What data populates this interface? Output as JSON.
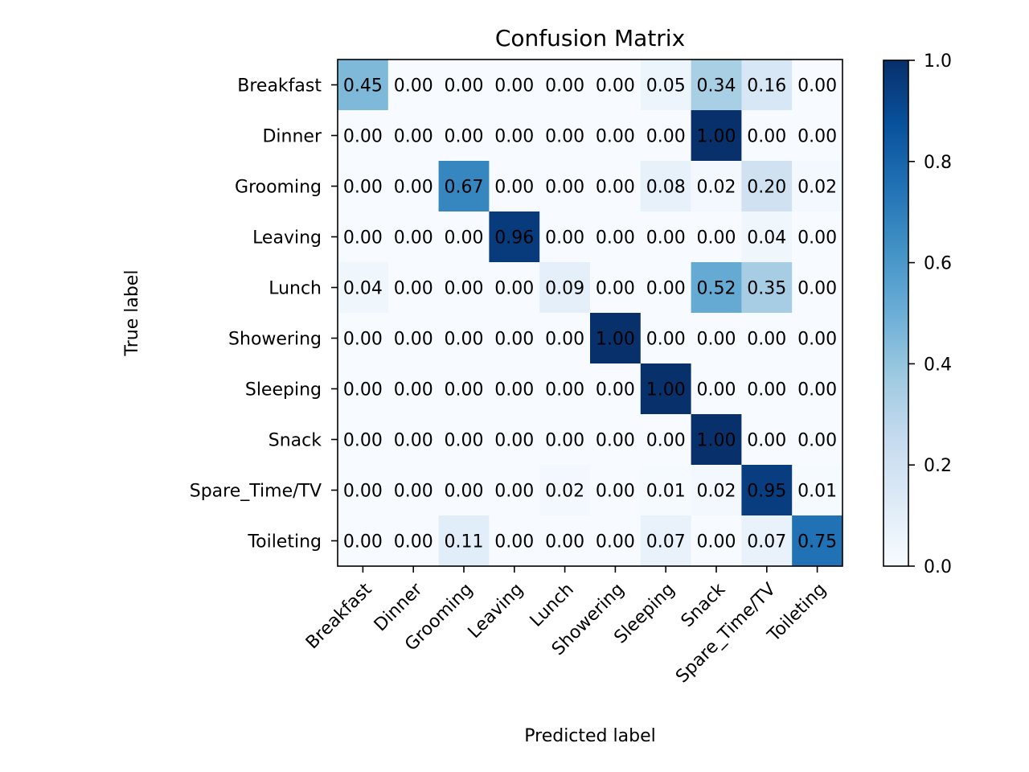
{
  "chart_data": {
    "type": "heatmap",
    "title": "Confusion Matrix",
    "xlabel": "Predicted label",
    "ylabel": "True label",
    "x_categories": [
      "Breakfast",
      "Dinner",
      "Grooming",
      "Leaving",
      "Lunch",
      "Showering",
      "Sleeping",
      "Snack",
      "Spare_Time/TV",
      "Toileting"
    ],
    "y_categories": [
      "Breakfast",
      "Dinner",
      "Grooming",
      "Leaving",
      "Lunch",
      "Showering",
      "Sleeping",
      "Snack",
      "Spare_Time/TV",
      "Toileting"
    ],
    "values": [
      [
        0.45,
        0.0,
        0.0,
        0.0,
        0.0,
        0.0,
        0.05,
        0.34,
        0.16,
        0.0
      ],
      [
        0.0,
        0.0,
        0.0,
        0.0,
        0.0,
        0.0,
        0.0,
        1.0,
        0.0,
        0.0
      ],
      [
        0.0,
        0.0,
        0.67,
        0.0,
        0.0,
        0.0,
        0.08,
        0.02,
        0.2,
        0.02
      ],
      [
        0.0,
        0.0,
        0.0,
        0.96,
        0.0,
        0.0,
        0.0,
        0.0,
        0.04,
        0.0
      ],
      [
        0.04,
        0.0,
        0.0,
        0.0,
        0.09,
        0.0,
        0.0,
        0.52,
        0.35,
        0.0
      ],
      [
        0.0,
        0.0,
        0.0,
        0.0,
        0.0,
        1.0,
        0.0,
        0.0,
        0.0,
        0.0
      ],
      [
        0.0,
        0.0,
        0.0,
        0.0,
        0.0,
        0.0,
        1.0,
        0.0,
        0.0,
        0.0
      ],
      [
        0.0,
        0.0,
        0.0,
        0.0,
        0.0,
        0.0,
        0.0,
        1.0,
        0.0,
        0.0
      ],
      [
        0.0,
        0.0,
        0.0,
        0.0,
        0.02,
        0.0,
        0.01,
        0.02,
        0.95,
        0.01
      ],
      [
        0.0,
        0.0,
        0.11,
        0.0,
        0.0,
        0.0,
        0.07,
        0.0,
        0.07,
        0.75
      ]
    ],
    "value_format": "2 decimals",
    "colormap": "Blues",
    "colorbar": {
      "range": [
        0.0,
        1.0
      ],
      "ticks": [
        "0.0",
        "0.2",
        "0.4",
        "0.6",
        "0.8",
        "1.0"
      ]
    },
    "text_colors": {
      "dark_cell": "#ffffff",
      "light_cell": "#000000"
    }
  }
}
